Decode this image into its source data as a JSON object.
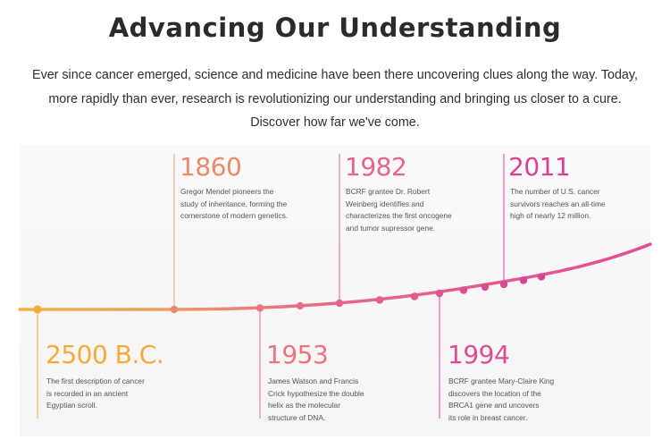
{
  "header": {
    "title": "Advancing Our Understanding",
    "intro_lines": [
      "Ever since cancer emerged, science and medicine have been there uncovering clues along the way. Today,",
      "more rapidly than ever, research is revolutionizing our understanding and bringing us closer to a cure.",
      "Discover how far we've come."
    ]
  },
  "colors": {
    "line_start": "#f2b24a",
    "line_end": "#e14d92",
    "c2500": "#f4ab3a",
    "c1860": "#ea8a66",
    "c1953": "#ea7580",
    "c1982": "#e56488",
    "c1994": "#dc4e91",
    "c2011": "#d94293"
  },
  "milestones": {
    "m2500": {
      "year": "2500 B.C.",
      "lines": [
        "The first description of cancer",
        "is recorded in an ancient",
        "Egyptian scroll."
      ]
    },
    "m1860": {
      "year": "1860",
      "lines": [
        "Gregor Mendel pioneers the",
        "study of inheritance, forming the",
        "cornerstone of modern genetics."
      ]
    },
    "m1953": {
      "year": "1953",
      "lines": [
        "James Watson and Francis",
        "Crick hypothesize the double",
        "helix as the molecular",
        "structure of DNA."
      ]
    },
    "m1982": {
      "year": "1982",
      "lines": [
        "BCRF grantee Dr. Robert",
        "Weinberg identifies and",
        "characterizes the first oncogene",
        "and tumor supressor gene."
      ]
    },
    "m1994": {
      "year": "1994",
      "lines": [
        "BCRF grantee Mary-Claire King",
        "discovers the location of the",
        "BRCA1 gene and uncovers",
        "its role in breast cancer."
      ]
    },
    "m2011": {
      "year": "2011",
      "lines": [
        "The number of U.S. cancer",
        "survivors reaches an all-time",
        "high of nearly 12 million."
      ]
    }
  }
}
